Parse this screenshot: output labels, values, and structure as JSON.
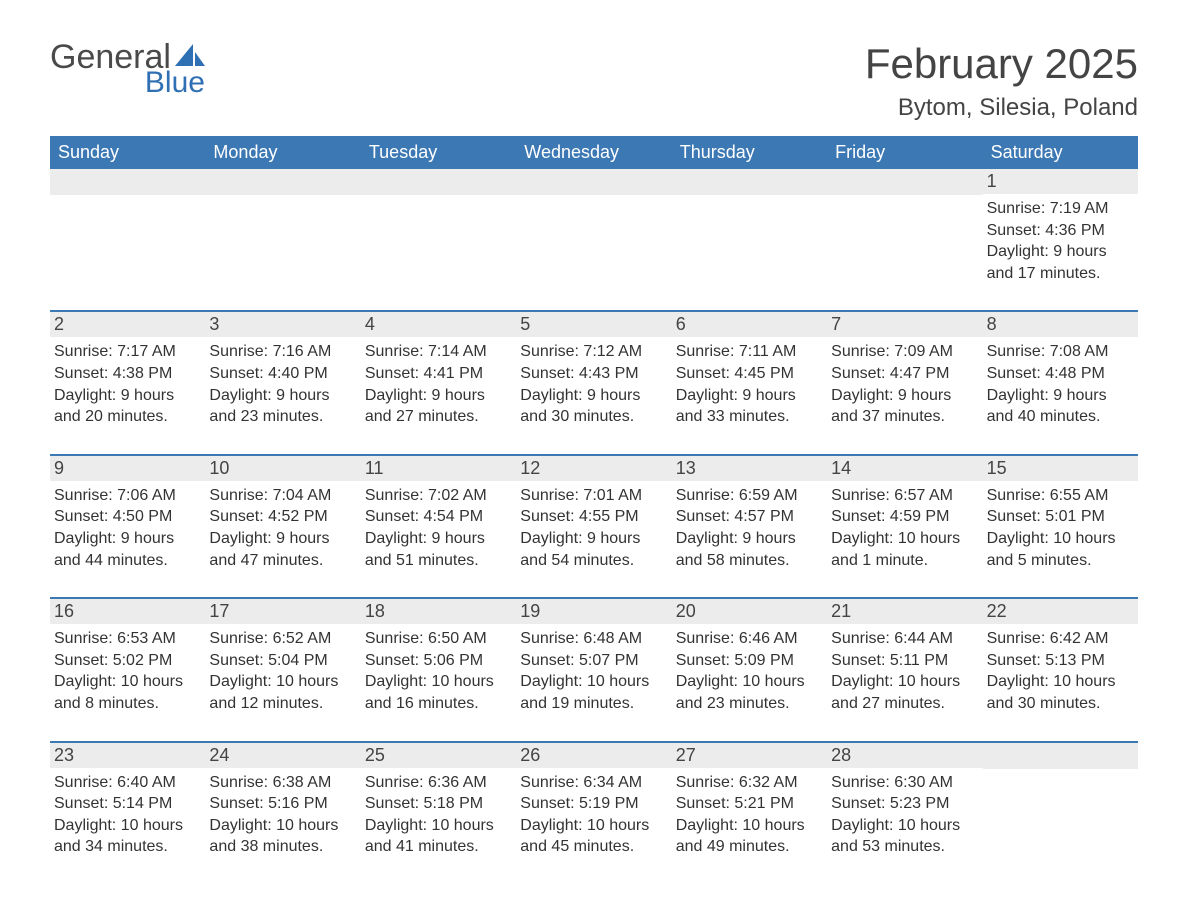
{
  "logo": {
    "general": "General",
    "blue": "Blue"
  },
  "title": "February 2025",
  "location": "Bytom, Silesia, Poland",
  "colors": {
    "header_bg": "#3c78b4",
    "header_text": "#ffffff",
    "row_divider": "#3c78b4",
    "daynum_bg": "#ececec",
    "text": "#333333",
    "title_text": "#444444",
    "logo_gray": "#4a4a4a",
    "logo_blue": "#2f6fb3",
    "page_bg": "#ffffff"
  },
  "weekdays": [
    "Sunday",
    "Monday",
    "Tuesday",
    "Wednesday",
    "Thursday",
    "Friday",
    "Saturday"
  ],
  "weeks": [
    [
      null,
      null,
      null,
      null,
      null,
      null,
      {
        "n": "1",
        "sunrise": "Sunrise: 7:19 AM",
        "sunset": "Sunset: 4:36 PM",
        "day1": "Daylight: 9 hours",
        "day2": "and 17 minutes."
      }
    ],
    [
      {
        "n": "2",
        "sunrise": "Sunrise: 7:17 AM",
        "sunset": "Sunset: 4:38 PM",
        "day1": "Daylight: 9 hours",
        "day2": "and 20 minutes."
      },
      {
        "n": "3",
        "sunrise": "Sunrise: 7:16 AM",
        "sunset": "Sunset: 4:40 PM",
        "day1": "Daylight: 9 hours",
        "day2": "and 23 minutes."
      },
      {
        "n": "4",
        "sunrise": "Sunrise: 7:14 AM",
        "sunset": "Sunset: 4:41 PM",
        "day1": "Daylight: 9 hours",
        "day2": "and 27 minutes."
      },
      {
        "n": "5",
        "sunrise": "Sunrise: 7:12 AM",
        "sunset": "Sunset: 4:43 PM",
        "day1": "Daylight: 9 hours",
        "day2": "and 30 minutes."
      },
      {
        "n": "6",
        "sunrise": "Sunrise: 7:11 AM",
        "sunset": "Sunset: 4:45 PM",
        "day1": "Daylight: 9 hours",
        "day2": "and 33 minutes."
      },
      {
        "n": "7",
        "sunrise": "Sunrise: 7:09 AM",
        "sunset": "Sunset: 4:47 PM",
        "day1": "Daylight: 9 hours",
        "day2": "and 37 minutes."
      },
      {
        "n": "8",
        "sunrise": "Sunrise: 7:08 AM",
        "sunset": "Sunset: 4:48 PM",
        "day1": "Daylight: 9 hours",
        "day2": "and 40 minutes."
      }
    ],
    [
      {
        "n": "9",
        "sunrise": "Sunrise: 7:06 AM",
        "sunset": "Sunset: 4:50 PM",
        "day1": "Daylight: 9 hours",
        "day2": "and 44 minutes."
      },
      {
        "n": "10",
        "sunrise": "Sunrise: 7:04 AM",
        "sunset": "Sunset: 4:52 PM",
        "day1": "Daylight: 9 hours",
        "day2": "and 47 minutes."
      },
      {
        "n": "11",
        "sunrise": "Sunrise: 7:02 AM",
        "sunset": "Sunset: 4:54 PM",
        "day1": "Daylight: 9 hours",
        "day2": "and 51 minutes."
      },
      {
        "n": "12",
        "sunrise": "Sunrise: 7:01 AM",
        "sunset": "Sunset: 4:55 PM",
        "day1": "Daylight: 9 hours",
        "day2": "and 54 minutes."
      },
      {
        "n": "13",
        "sunrise": "Sunrise: 6:59 AM",
        "sunset": "Sunset: 4:57 PM",
        "day1": "Daylight: 9 hours",
        "day2": "and 58 minutes."
      },
      {
        "n": "14",
        "sunrise": "Sunrise: 6:57 AM",
        "sunset": "Sunset: 4:59 PM",
        "day1": "Daylight: 10 hours",
        "day2": "and 1 minute."
      },
      {
        "n": "15",
        "sunrise": "Sunrise: 6:55 AM",
        "sunset": "Sunset: 5:01 PM",
        "day1": "Daylight: 10 hours",
        "day2": "and 5 minutes."
      }
    ],
    [
      {
        "n": "16",
        "sunrise": "Sunrise: 6:53 AM",
        "sunset": "Sunset: 5:02 PM",
        "day1": "Daylight: 10 hours",
        "day2": "and 8 minutes."
      },
      {
        "n": "17",
        "sunrise": "Sunrise: 6:52 AM",
        "sunset": "Sunset: 5:04 PM",
        "day1": "Daylight: 10 hours",
        "day2": "and 12 minutes."
      },
      {
        "n": "18",
        "sunrise": "Sunrise: 6:50 AM",
        "sunset": "Sunset: 5:06 PM",
        "day1": "Daylight: 10 hours",
        "day2": "and 16 minutes."
      },
      {
        "n": "19",
        "sunrise": "Sunrise: 6:48 AM",
        "sunset": "Sunset: 5:07 PM",
        "day1": "Daylight: 10 hours",
        "day2": "and 19 minutes."
      },
      {
        "n": "20",
        "sunrise": "Sunrise: 6:46 AM",
        "sunset": "Sunset: 5:09 PM",
        "day1": "Daylight: 10 hours",
        "day2": "and 23 minutes."
      },
      {
        "n": "21",
        "sunrise": "Sunrise: 6:44 AM",
        "sunset": "Sunset: 5:11 PM",
        "day1": "Daylight: 10 hours",
        "day2": "and 27 minutes."
      },
      {
        "n": "22",
        "sunrise": "Sunrise: 6:42 AM",
        "sunset": "Sunset: 5:13 PM",
        "day1": "Daylight: 10 hours",
        "day2": "and 30 minutes."
      }
    ],
    [
      {
        "n": "23",
        "sunrise": "Sunrise: 6:40 AM",
        "sunset": "Sunset: 5:14 PM",
        "day1": "Daylight: 10 hours",
        "day2": "and 34 minutes."
      },
      {
        "n": "24",
        "sunrise": "Sunrise: 6:38 AM",
        "sunset": "Sunset: 5:16 PM",
        "day1": "Daylight: 10 hours",
        "day2": "and 38 minutes."
      },
      {
        "n": "25",
        "sunrise": "Sunrise: 6:36 AM",
        "sunset": "Sunset: 5:18 PM",
        "day1": "Daylight: 10 hours",
        "day2": "and 41 minutes."
      },
      {
        "n": "26",
        "sunrise": "Sunrise: 6:34 AM",
        "sunset": "Sunset: 5:19 PM",
        "day1": "Daylight: 10 hours",
        "day2": "and 45 minutes."
      },
      {
        "n": "27",
        "sunrise": "Sunrise: 6:32 AM",
        "sunset": "Sunset: 5:21 PM",
        "day1": "Daylight: 10 hours",
        "day2": "and 49 minutes."
      },
      {
        "n": "28",
        "sunrise": "Sunrise: 6:30 AM",
        "sunset": "Sunset: 5:23 PM",
        "day1": "Daylight: 10 hours",
        "day2": "and 53 minutes."
      },
      null
    ]
  ]
}
